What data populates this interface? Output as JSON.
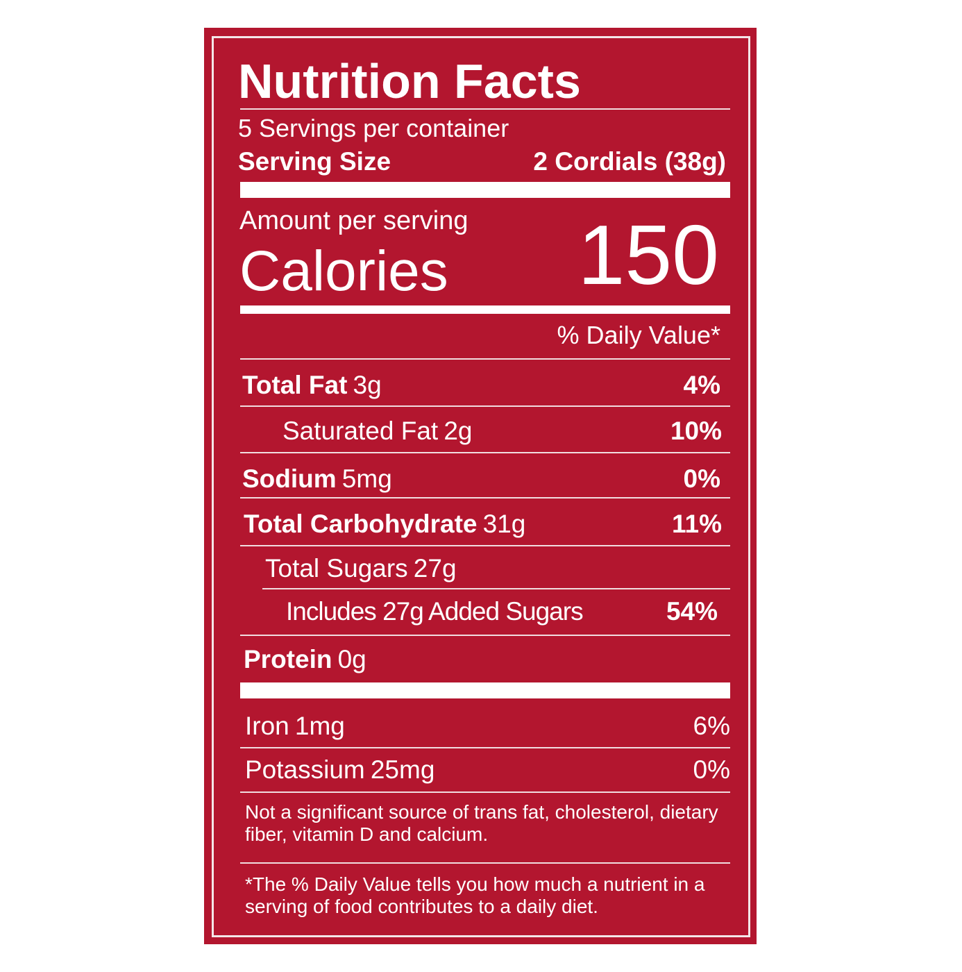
{
  "header": {
    "title": "Nutrition Facts",
    "servings": "5 Servings per container",
    "serving_size_label": "Serving Size",
    "serving_size": "2 Cordials (38g)"
  },
  "calories": {
    "amount_label": "Amount per serving",
    "label": "Calories",
    "value": "150"
  },
  "daily_value_header": "% Daily Value*",
  "nutrients": [
    {
      "name": "Total Fat",
      "amount": "3g",
      "dv": "4%"
    },
    {
      "name": "Saturated Fat",
      "amount": "2g",
      "dv": "10%"
    },
    {
      "name": "Sodium",
      "amount": "5mg",
      "dv": "0%"
    },
    {
      "name": "Total Carbohydrate",
      "amount": "31g",
      "dv": "11%"
    },
    {
      "name": "Total Sugars",
      "amount": "27g"
    },
    {
      "name": "Includes 27g Added Sugars",
      "dv": "54%"
    },
    {
      "name": "Protein",
      "amount": "0g"
    }
  ],
  "minerals": [
    {
      "name": "Iron",
      "amount": "1mg",
      "dv": "6%"
    },
    {
      "name": "Potassium",
      "amount": "25mg",
      "dv": "0%"
    }
  ],
  "notes": [
    "Not a significant source of trans fat, cholesterol, dietary fiber, vitamin D and calcium.",
    "*The % Daily Value tells you how much a nutrient in a serving of food contributes to a daily diet."
  ]
}
